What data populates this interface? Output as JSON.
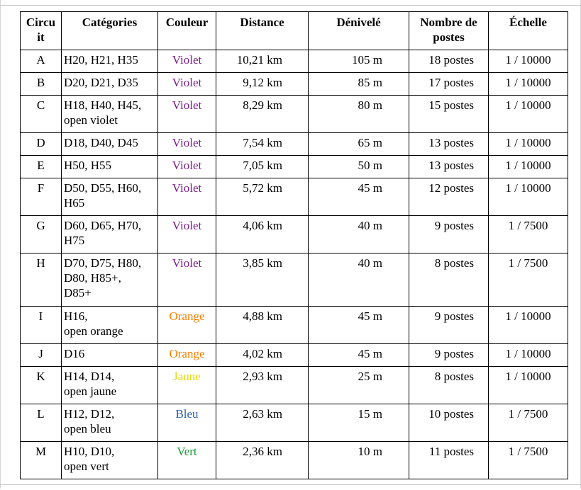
{
  "headers": {
    "circuit": "Circu it",
    "categories": "Catégories",
    "couleur": "Couleur",
    "distance": "Distance",
    "denivele": "Dénivelé",
    "postes": "Nombre de postes",
    "echelle": "Échelle"
  },
  "colors": {
    "violet": "#7b1e8c",
    "orange": "#ff7f00",
    "jaune": "#e0d800",
    "bleu": "#2f5fa8",
    "vert": "#1a9a3a"
  },
  "rows": [
    {
      "circuit": "A",
      "categories": "H20, H21, H35",
      "couleur": "Violet",
      "distance": "10,21 km",
      "denivele": "105 m",
      "postes": "18 postes",
      "echelle": "1 / 10000"
    },
    {
      "circuit": "B",
      "categories": "D20, D21, D35",
      "couleur": "Violet",
      "distance": "9,12 km",
      "denivele": "85 m",
      "postes": "17 postes",
      "echelle": "1 / 10000"
    },
    {
      "circuit": "C",
      "categories": "H18, H40, H45, open violet",
      "couleur": "Violet",
      "distance": "8,29 km",
      "denivele": "80 m",
      "postes": "15 postes",
      "echelle": "1 / 10000"
    },
    {
      "circuit": "D",
      "categories": "D18, D40, D45",
      "couleur": "Violet",
      "distance": "7,54 km",
      "denivele": "65 m",
      "postes": "13 postes",
      "echelle": "1 / 10000"
    },
    {
      "circuit": "E",
      "categories": "H50, H55",
      "couleur": "Violet",
      "distance": "7,05 km",
      "denivele": "50 m",
      "postes": "13 postes",
      "echelle": "1 / 10000"
    },
    {
      "circuit": "F",
      "categories": "D50, D55, H60, H65",
      "couleur": "Violet",
      "distance": "5,72 km",
      "denivele": "45 m",
      "postes": "12 postes",
      "echelle": "1 / 10000"
    },
    {
      "circuit": "G",
      "categories": "D60, D65, H70, H75",
      "couleur": "Violet",
      "distance": "4,06 km",
      "denivele": "40 m",
      "postes": "9 postes",
      "echelle": "1 / 7500"
    },
    {
      "circuit": "H",
      "categories": "D70, D75, H80, D80, H85+, D85+",
      "couleur": "Violet",
      "distance": "3,85 km",
      "denivele": "40 m",
      "postes": "8 postes",
      "echelle": "1 / 7500"
    },
    {
      "circuit": "I",
      "categories": "H16, open orange",
      "couleur": "Orange",
      "distance": "4,88 km",
      "denivele": "45 m",
      "postes": "9 postes",
      "echelle": "1 / 10000"
    },
    {
      "circuit": "J",
      "categories": "D16",
      "couleur": "Orange",
      "distance": "4,02 km",
      "denivele": "45 m",
      "postes": "9 postes",
      "echelle": "1 / 10000"
    },
    {
      "circuit": "K",
      "categories": "H14, D14, open jaune",
      "couleur": "Jaune",
      "distance": "2,93 km",
      "denivele": "25 m",
      "postes": "8 postes",
      "echelle": "1 / 10000"
    },
    {
      "circuit": "L",
      "categories": "H12, D12, open bleu",
      "couleur": "Bleu",
      "distance": "2,63 km",
      "denivele": "15 m",
      "postes": "10 postes",
      "echelle": "1 / 7500"
    },
    {
      "circuit": "M",
      "categories": "H10, D10, open vert",
      "couleur": "Vert",
      "distance": "2,36 km",
      "denivele": "10 m",
      "postes": "11 postes",
      "echelle": "1 / 7500"
    }
  ]
}
